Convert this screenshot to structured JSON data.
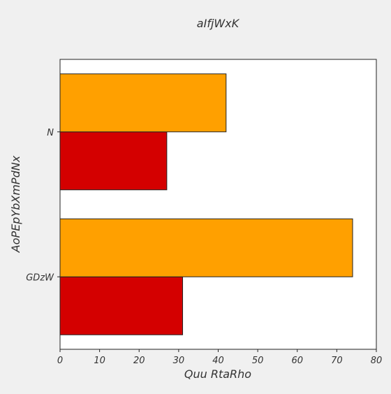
{
  "chart_data": {
    "type": "bar",
    "orientation": "horizontal",
    "title": "aIfjWxK",
    "xlabel": "Quu RtaRho",
    "ylabel": "AoPEpYbXmPdNx",
    "categories": [
      "GDzW",
      "N"
    ],
    "series": [
      {
        "color": "#d40000",
        "values": [
          31,
          27
        ]
      },
      {
        "color": "#ffa000",
        "values": [
          74,
          42
        ]
      }
    ],
    "xlim": [
      0,
      80
    ],
    "xticks": [
      "0",
      "10",
      "20",
      "30",
      "40",
      "50",
      "60",
      "70",
      "80"
    ],
    "grid": false,
    "legend": "none"
  }
}
